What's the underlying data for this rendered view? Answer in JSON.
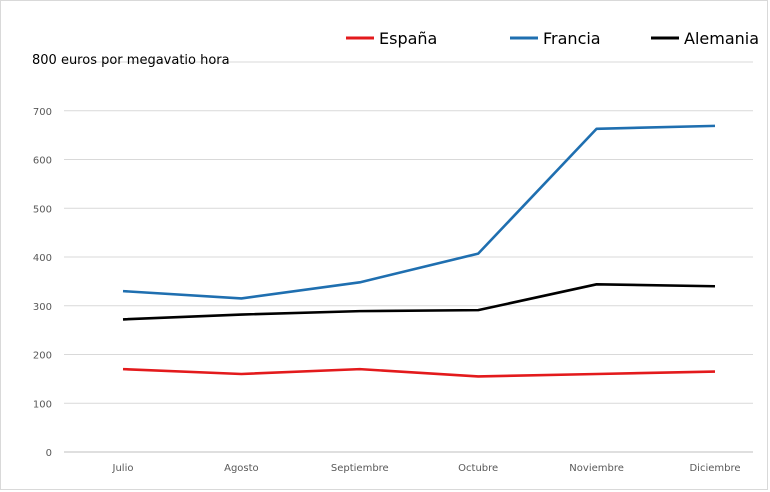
{
  "chart_data": {
    "type": "line",
    "title": "",
    "ylabel": "",
    "ytop_label": "800 euros por megavatio hora",
    "xlabel": "",
    "categories": [
      "Julio",
      "Agosto",
      "Septiembre",
      "Octubre",
      "Noviembre",
      "Diciembre"
    ],
    "ylim": [
      0,
      800
    ],
    "yticks": [
      "0",
      "100",
      "200",
      "300",
      "400",
      "500",
      "600",
      "700"
    ],
    "grid": true,
    "legend_position": "top-right",
    "series": [
      {
        "name": "España",
        "color": "#e31a1c",
        "values": [
          170,
          160,
          170,
          155,
          160,
          165
        ]
      },
      {
        "name": "Francia",
        "color": "#1f6fb0",
        "values": [
          330,
          315,
          348,
          407,
          663,
          669
        ]
      },
      {
        "name": "Alemania",
        "color": "#000000",
        "values": [
          272,
          282,
          289,
          291,
          344,
          340
        ]
      }
    ]
  }
}
